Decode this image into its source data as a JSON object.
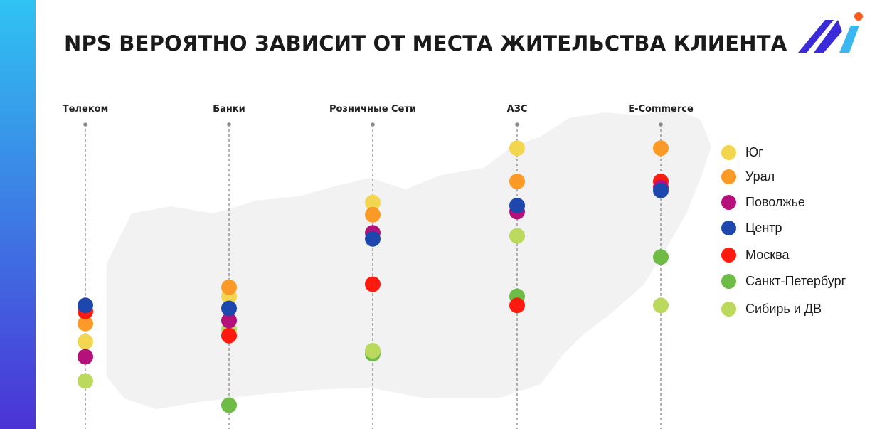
{
  "title": "NPS ВЕРОЯТНО ЗАВИСИТ ОТ МЕСТА ЖИТЕЛЬСТВА КЛИЕНТА",
  "colors": {
    "stripe_top": "#2fc3f2",
    "stripe_bottom": "#4b33d6",
    "logo_blue": "#3a2ad8",
    "logo_cyan": "#3ab7f0",
    "logo_dot": "#ff5a1f",
    "map": "#f2f2f2",
    "guide": "#8a8a8a"
  },
  "chart_data": {
    "type": "scatter",
    "categories": [
      "Телеком",
      "Банки",
      "Розничные Сети",
      "АЗС",
      "E-Commerce"
    ],
    "y_axis": {
      "shown": false,
      "direction": "higher position = higher NPS",
      "range": [
        0,
        100
      ]
    },
    "grid": false,
    "legend_position": "right",
    "series": [
      {
        "name": "Юг",
        "color": "#f2d64f",
        "values": [
          27,
          42,
          73,
          91,
          null
        ]
      },
      {
        "name": "Урал",
        "color": "#fb9a26",
        "values": [
          33,
          45,
          69,
          80,
          91
        ]
      },
      {
        "name": "Поволжье",
        "color": "#b5117a",
        "values": [
          22,
          34,
          63,
          70,
          78
        ]
      },
      {
        "name": "Центр",
        "color": "#1d47ad",
        "values": [
          39,
          38,
          61,
          72,
          77
        ]
      },
      {
        "name": "Москва",
        "color": "#ff1a0f",
        "values": [
          37,
          29,
          46,
          39,
          80
        ]
      },
      {
        "name": "Санкт-Петербург",
        "color": "#6ebb45",
        "values": [
          null,
          6,
          23,
          42,
          55
        ]
      },
      {
        "name": "Сибирь и ДВ",
        "color": "#bbd95c",
        "values": [
          14,
          31,
          24,
          62,
          39
        ]
      }
    ]
  }
}
